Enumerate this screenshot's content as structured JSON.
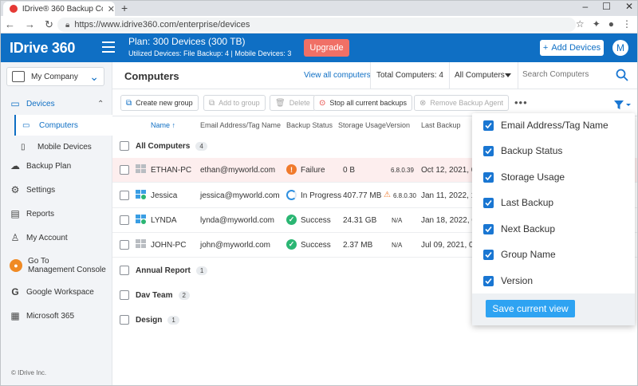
{
  "browser": {
    "tab_title": "IDrive® 360 Backup Console for",
    "url": "https://www.idrive360.com/enterprise/devices"
  },
  "header": {
    "logo": "IDrive 360",
    "plan": "Plan: 300 Devices (300 TB)",
    "utilized": "Utilized Devices: File Backup: 4 |  Mobile Devices: 3",
    "upgrade_label": "Upgrade",
    "add_devices_label": "Add Devices",
    "avatar_initial": "M",
    "brand_color": "#0f6fc4"
  },
  "sidebar": {
    "company": "My Company",
    "items": [
      {
        "label": "Devices"
      },
      {
        "label": "Computers"
      },
      {
        "label": "Mobile Devices"
      },
      {
        "label": "Backup Plan"
      },
      {
        "label": "Settings"
      },
      {
        "label": "Reports"
      },
      {
        "label": "My Account"
      },
      {
        "label": "Go To"
      },
      {
        "label": "Management Console"
      },
      {
        "label": "Google Workspace"
      },
      {
        "label": "Microsoft 365"
      }
    ],
    "copyright": "© IDrive Inc."
  },
  "main": {
    "title": "Computers",
    "view_all": "View all computers",
    "total": "Total Computers: 4",
    "filter_select": "All Computers",
    "search_placeholder": "Search Computers"
  },
  "toolbar": {
    "create_group": "Create new group",
    "add_to_group": "Add to group",
    "delete": "Delete",
    "stop_backups": "Stop all current backups",
    "remove_agent": "Remove Backup Agent"
  },
  "table": {
    "headers": [
      "Name",
      "Email Address/Tag Name",
      "Backup Status",
      "Storage Usage",
      "Version",
      "Last Backup"
    ],
    "all_group": {
      "label": "All Computers",
      "count": "4"
    },
    "rows": [
      {
        "name": "ETHAN-PC",
        "email": "ethan@myworld.com",
        "status": "Failure",
        "storage": "0 B",
        "version": "6.8.0.39",
        "last": "Oct 12, 2021, 08"
      },
      {
        "name": "Jessica",
        "email": "jessica@myworld.com",
        "status": "In Progress",
        "storage": "407.77 MB",
        "version": "6.8.0.30",
        "last": "Jan 11, 2022, 16"
      },
      {
        "name": "LYNDA",
        "email": "lynda@myworld.com",
        "status": "Success",
        "storage": "24.31 GB",
        "version": "N/A",
        "last": "Jan 18, 2022, 08"
      },
      {
        "name": "JOHN-PC",
        "email": "john@myworld.com",
        "status": "Success",
        "storage": "2.37 MB",
        "version": "N/A",
        "last": "Jul 09, 2021, 08"
      }
    ],
    "groups": [
      {
        "label": "Annual Report",
        "count": "1"
      },
      {
        "label": "Dav Team",
        "count": "2"
      },
      {
        "label": "Design",
        "count": "1"
      }
    ]
  },
  "column_popup": {
    "options": [
      "Email Address/Tag Name",
      "Backup Status",
      "Storage Usage",
      "Last Backup",
      "Next Backup",
      "Group Name",
      "Version"
    ],
    "save_label": "Save current view"
  }
}
